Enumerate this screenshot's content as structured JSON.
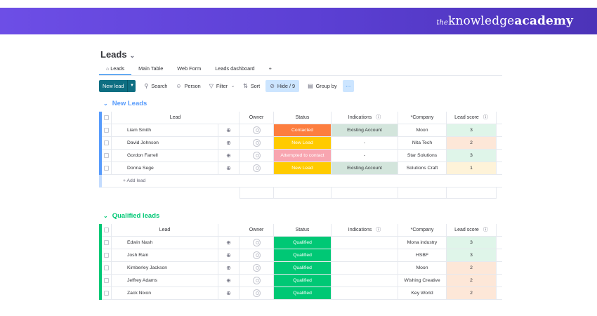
{
  "brand": {
    "prefix": "the",
    "word1": "knowledge",
    "word2": "academy"
  },
  "page": {
    "title": "Leads"
  },
  "tabs": [
    {
      "label": "Leads",
      "active": true,
      "icon": "home-icon"
    },
    {
      "label": "Main Table"
    },
    {
      "label": "Web Form"
    },
    {
      "label": "Leads dashboard"
    },
    {
      "label": "+"
    }
  ],
  "toolbar": {
    "new_label": "New lead",
    "search": "Search",
    "person": "Person",
    "filter": "Filter",
    "sort": "Sort",
    "hide": "Hide / 9",
    "group_by": "Group by",
    "more": "···"
  },
  "columns": {
    "lead": "Lead",
    "owner": "Owner",
    "status": "Status",
    "indications": "Indications",
    "company": "*Company",
    "score": "Lead score"
  },
  "colors": {
    "contacted": "#fd7e3f",
    "new_lead": "#ffcb00",
    "attempted": "#f8a5b0",
    "qualified": "#00c875",
    "existing_account": "#d3e5dc",
    "score_green": "#dff5e9",
    "score_orange": "#fde7d8",
    "score_yellow": "#fef3d9"
  },
  "groups": [
    {
      "title": "New Leads",
      "color": "blue",
      "add_label": "+ Add lead",
      "rows": [
        {
          "lead": "Liam Smith",
          "status": "Contacted",
          "status_color": "#fd7e3f",
          "indication": "Existing Account",
          "ind_color": "#d3e5dc",
          "company": "Moon",
          "score": "3",
          "score_color": "#dff5e9"
        },
        {
          "lead": "David Johnson",
          "status": "New Lead",
          "status_color": "#ffcb00",
          "indication": "-",
          "ind_color": "",
          "company": "Nita Tech",
          "score": "2",
          "score_color": "#fde7d8"
        },
        {
          "lead": "Gordon Farrell",
          "status": "Attempted to contact",
          "status_color": "#f8a5b0",
          "indication": "-",
          "ind_color": "",
          "company": "Star Solutions",
          "score": "3",
          "score_color": "#dff5e9"
        },
        {
          "lead": "Donna Sege",
          "status": "New Lead",
          "status_color": "#ffcb00",
          "indication": "Existing Account",
          "ind_color": "#d3e5dc",
          "company": "Solutions Craft",
          "score": "1",
          "score_color": "#fef3d9"
        }
      ]
    },
    {
      "title": "Qualified leads",
      "color": "green",
      "rows": [
        {
          "lead": "Edwin Nash",
          "status": "Qualified",
          "status_color": "#00c875",
          "indication": "",
          "ind_color": "",
          "company": "Mona industry",
          "score": "3",
          "score_color": "#dff5e9"
        },
        {
          "lead": "Josh Rain",
          "status": "Qualified",
          "status_color": "#00c875",
          "indication": "",
          "ind_color": "",
          "company": "HSBF",
          "score": "3",
          "score_color": "#dff5e9"
        },
        {
          "lead": "Kimberley Jackson",
          "status": "Qualified",
          "status_color": "#00c875",
          "indication": "",
          "ind_color": "",
          "company": "Moon",
          "score": "2",
          "score_color": "#fde7d8"
        },
        {
          "lead": "Jeffrey Adams",
          "status": "Qualified",
          "status_color": "#00c875",
          "indication": "",
          "ind_color": "",
          "company": "Wishing Creative",
          "score": "2",
          "score_color": "#fde7d8"
        },
        {
          "lead": "Zack Nixon",
          "status": "Qualified",
          "status_color": "#00c875",
          "indication": "",
          "ind_color": "",
          "company": "Key World",
          "score": "2",
          "score_color": "#fde7d8"
        }
      ]
    }
  ]
}
